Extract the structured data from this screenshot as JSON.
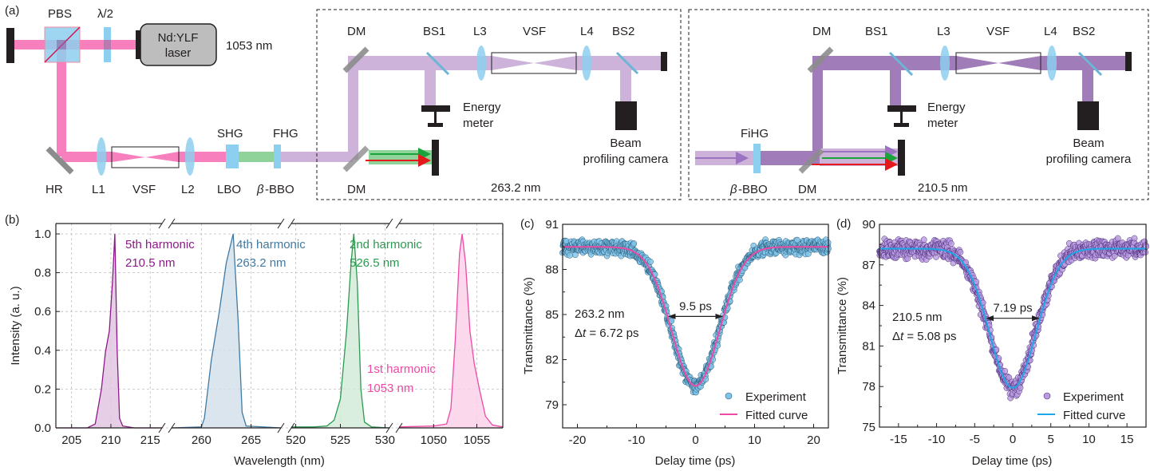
{
  "panel_a": {
    "panel_label": "(a)",
    "source_path": {
      "labels": {
        "pbs": "PBS",
        "half_wave": "λ/2",
        "laser_line1": "Nd:YLF",
        "laser_line2": "laser",
        "laser_wavelength": "1053 nm",
        "hr": "HR",
        "l1": "L1",
        "vsf": "VSF",
        "l2": "L2",
        "shg": "SHG",
        "lbo": "LBO",
        "fhg": "FHG",
        "bbo": "β-BBO"
      }
    },
    "box_263": {
      "labels": {
        "dm_top": "DM",
        "bs1": "BS1",
        "l3": "L3",
        "vsf": "VSF",
        "l4": "L4",
        "bs2": "BS2",
        "energy_meter_1": "Energy",
        "energy_meter_2": "meter",
        "camera_1": "Beam",
        "camera_2": "profiling camera",
        "dm_bottom": "DM",
        "wavelength": "263.2 nm"
      }
    },
    "box_210": {
      "labels": {
        "dm_top": "DM",
        "bs1": "BS1",
        "l3": "L3",
        "vsf": "VSF",
        "l4": "L4",
        "bs2": "BS2",
        "energy_meter_1": "Energy",
        "energy_meter_2": "meter",
        "camera_1": "Beam",
        "camera_2": "profiling camera",
        "fihg": "FiHG",
        "bbo": "β-BBO",
        "dm_bottom": "DM",
        "wavelength": "210.5 nm"
      }
    },
    "colors": {
      "ir_beam": "#f77fbe",
      "uv263_beam": "#cdb3d9",
      "uv210_beam": "#a07cb8",
      "green_beam": "#8fd39b",
      "crystal": "#8dcfee",
      "mirror": "#8c8c8c",
      "dark": "#231f20",
      "laser_box": "#bdbdbd"
    }
  },
  "chart_data": [
    {
      "panel_label": "(b)",
      "type": "area",
      "xlabel": "Wavelength (nm)",
      "ylabel": "Intensity (a. u.)",
      "ylim": [
        0,
        1.0
      ],
      "yticks": [
        "0.0",
        "0.2",
        "0.4",
        "0.6",
        "0.8",
        "1.0"
      ],
      "grid": true,
      "broken_x_axis": true,
      "segments": [
        {
          "xlim": [
            203,
            216.5
          ],
          "xticks": [
            "205",
            "210",
            "215"
          ]
        },
        {
          "xlim": [
            257,
            268
          ],
          "xticks": [
            "260",
            "265"
          ]
        },
        {
          "xlim": [
            519.5,
            530.5
          ],
          "xticks": [
            "520",
            "525",
            "530"
          ]
        },
        {
          "xlim": [
            1046,
            1058
          ],
          "xticks": [
            "1050",
            "1055"
          ]
        }
      ],
      "series": [
        {
          "name": "5th harmonic",
          "label_line1": "5th harmonic",
          "label_line2": "210.5 nm",
          "color": "#8b1a89",
          "fill": "#e2c7e2",
          "segment": 0,
          "x": [
            203,
            207,
            208,
            208.8,
            209.3,
            209.8,
            210.2,
            210.5,
            210.8,
            211.1,
            211.5,
            213,
            216.5
          ],
          "y": [
            0,
            0,
            0.02,
            0.2,
            0.39,
            0.5,
            0.75,
            1.0,
            0.4,
            0.05,
            0.01,
            0,
            0
          ]
        },
        {
          "name": "4th harmonic",
          "label_line1": "4th harmonic",
          "label_line2": "263.2 nm",
          "color": "#3f7aa3",
          "fill": "#d3e1ea",
          "segment": 1,
          "x": [
            257,
            260,
            260.3,
            261,
            261.8,
            262.5,
            263.2,
            263.7,
            264.1,
            264.5,
            268
          ],
          "y": [
            0,
            0.005,
            0.05,
            0.35,
            0.6,
            0.85,
            1.0,
            0.55,
            0.08,
            0.01,
            0
          ]
        },
        {
          "name": "2nd harmonic",
          "label_line1": "2nd harmonic",
          "label_line2": "526.5 nm",
          "color": "#2a9a4f",
          "fill": "#d3ebd9",
          "segment": 2,
          "x": [
            519.5,
            522,
            523.5,
            524.3,
            525,
            525.7,
            526.2,
            526.5,
            526.9,
            527.3,
            527.7,
            528.5,
            530.5
          ],
          "y": [
            0.005,
            0.005,
            0.01,
            0.04,
            0.15,
            0.5,
            0.85,
            1.0,
            0.75,
            0.2,
            0.03,
            0.005,
            0
          ]
        },
        {
          "name": "1st harmonic",
          "label_line1": "1st harmonic",
          "label_line2": "1053 nm",
          "color": "#ec4aa5",
          "fill": "#fbd1ea",
          "segment": 3,
          "x": [
            1046,
            1050,
            1051.5,
            1052,
            1052.5,
            1053,
            1053.3,
            1053.7,
            1054.2,
            1054.7,
            1055.3,
            1056,
            1056.8,
            1058
          ],
          "y": [
            0.005,
            0.01,
            0.02,
            0.1,
            0.45,
            0.9,
            1.0,
            0.85,
            0.5,
            0.33,
            0.2,
            0.06,
            0.015,
            0.005
          ]
        }
      ]
    },
    {
      "panel_label": "(c)",
      "type": "scatter",
      "xlabel": "Delay time (ps)",
      "ylabel": "Transmittance (%)",
      "xlim": [
        -22.5,
        22.5
      ],
      "ylim": [
        77.46,
        91
      ],
      "xticks": [
        "-20",
        "-10",
        "0",
        "10",
        "20"
      ],
      "yticks": [
        "79",
        "82",
        "85",
        "88",
        "91"
      ],
      "grid": false,
      "legend": {
        "position": "bottom-right",
        "entries": [
          "Experiment",
          "Fitted curve"
        ]
      },
      "annotations": {
        "wavelength": "263.2 nm",
        "dt_prefix": "Δ",
        "dt_var": "t",
        "dt_value": " = 6.72 ps",
        "fwhm": "9.5 ps"
      },
      "fit": {
        "model": "gaussian",
        "baseline": 89.5,
        "minimum": 80.25,
        "center": 0,
        "fwhm_ps": 9.5
      },
      "experiment_color": "#7ec3e8",
      "experiment_edge": "#2b5a78",
      "fit_color": "#ec4aa5",
      "noise": 0.35
    },
    {
      "panel_label": "(d)",
      "type": "scatter",
      "xlabel": "Delay time (ps)",
      "ylabel": "Transmittance (%)",
      "xlim": [
        -17.5,
        17.5
      ],
      "ylim": [
        75,
        90
      ],
      "xticks": [
        "-15",
        "-10",
        "-5",
        "0",
        "5",
        "10",
        "15"
      ],
      "yticks": [
        "75",
        "78",
        "81",
        "84",
        "87",
        "90"
      ],
      "grid": false,
      "legend": {
        "position": "bottom-right",
        "entries": [
          "Experiment",
          "Fitted curve"
        ]
      },
      "annotations": {
        "wavelength": "210.5 nm",
        "dt_prefix": "Δ",
        "dt_var": "t",
        "dt_value": " = 5.08 ps",
        "fwhm": "7.19 ps"
      },
      "fit": {
        "model": "gaussian",
        "baseline": 88.2,
        "minimum": 77.9,
        "center": 0,
        "fwhm_ps": 7.19
      },
      "experiment_color": "#b99be0",
      "experiment_edge": "#4a2a7a",
      "fit_color": "#1ea7e8",
      "noise": 0.5
    }
  ]
}
